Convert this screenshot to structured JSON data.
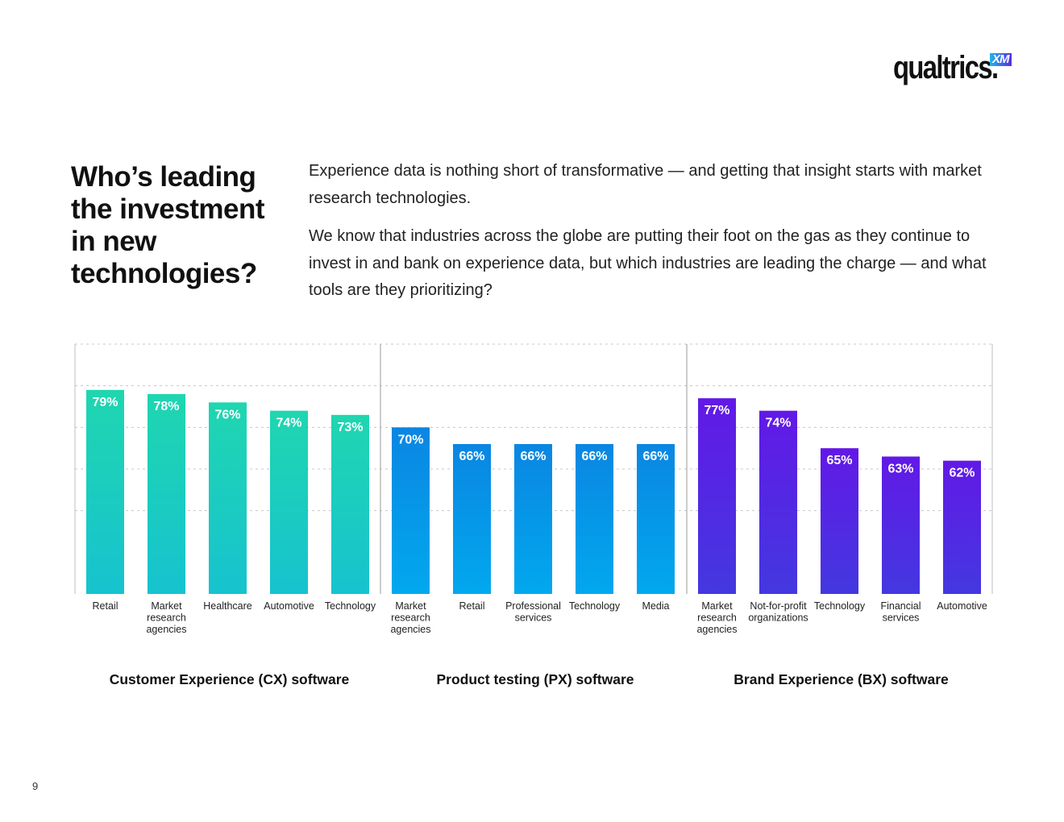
{
  "brand": {
    "wordmark": "qualtrics.",
    "badge": "XM"
  },
  "headline": "Who’s leading the investment in new technologies?",
  "intro": [
    "Experience data is nothing short of transformative — and getting that insight starts with market research technologies.",
    "We know that industries across the globe are putting their foot on the gas as they continue to invest in and bank on experience data, but which industries are leading the charge — and what tools are they prioritizing?"
  ],
  "page_number": "9",
  "colors": {
    "cx_top": "#1fd6b0",
    "cx_bottom": "#16c3cf",
    "px_top": "#0a86e2",
    "px_bottom": "#02a8ee",
    "bx_top": "#6219e6",
    "bx_bottom": "#4338e0",
    "grid": "#c8c8c8",
    "divider": "#9a9a9a"
  },
  "chart_data": {
    "type": "bar",
    "ylim": [
      0,
      100
    ],
    "value_suffix": "%",
    "grid": true,
    "groups": [
      {
        "name": "Customer Experience (CX) software",
        "categories": [
          [
            "Retail"
          ],
          [
            "Market",
            "research",
            "agencies"
          ],
          [
            "Healthcare"
          ],
          [
            "Automotive"
          ],
          [
            "Technology"
          ]
        ],
        "values": [
          79,
          78,
          76,
          74,
          73
        ],
        "color_key": "cx"
      },
      {
        "name": "Product testing (PX) software",
        "categories": [
          [
            "Market",
            "research",
            "agencies"
          ],
          [
            "Retail"
          ],
          [
            "Professional",
            "services"
          ],
          [
            "Technology"
          ],
          [
            "Media"
          ]
        ],
        "values": [
          70,
          66,
          66,
          66,
          66
        ],
        "color_key": "px"
      },
      {
        "name": "Brand Experience (BX) software",
        "categories": [
          [
            "Market",
            "research",
            "agencies"
          ],
          [
            "Not-for-profit",
            "organizations"
          ],
          [
            "Technology"
          ],
          [
            "Financial",
            "services"
          ],
          [
            "Automotive"
          ]
        ],
        "values": [
          77,
          74,
          65,
          63,
          62
        ],
        "color_key": "bx"
      }
    ]
  }
}
